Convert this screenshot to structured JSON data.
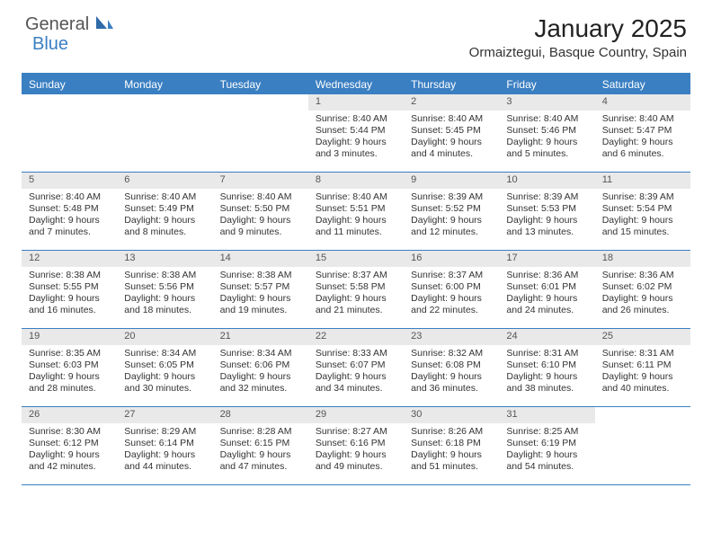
{
  "logo": {
    "general": "General",
    "blue": "Blue",
    "color_gray": "#555555",
    "color_blue": "#3a7fc2"
  },
  "header": {
    "title": "January 2025",
    "location": "Ormaiztegui, Basque Country, Spain"
  },
  "colors": {
    "accent": "#3a7fc2",
    "header_bg": "#3a7fc2",
    "daynum_bg": "#e9e9e9",
    "text": "#333333"
  },
  "day_names": [
    "Sunday",
    "Monday",
    "Tuesday",
    "Wednesday",
    "Thursday",
    "Friday",
    "Saturday"
  ],
  "weeks": [
    [
      null,
      null,
      null,
      {
        "n": "1",
        "sunrise": "Sunrise: 8:40 AM",
        "sunset": "Sunset: 5:44 PM",
        "daylight": "Daylight: 9 hours and 3 minutes."
      },
      {
        "n": "2",
        "sunrise": "Sunrise: 8:40 AM",
        "sunset": "Sunset: 5:45 PM",
        "daylight": "Daylight: 9 hours and 4 minutes."
      },
      {
        "n": "3",
        "sunrise": "Sunrise: 8:40 AM",
        "sunset": "Sunset: 5:46 PM",
        "daylight": "Daylight: 9 hours and 5 minutes."
      },
      {
        "n": "4",
        "sunrise": "Sunrise: 8:40 AM",
        "sunset": "Sunset: 5:47 PM",
        "daylight": "Daylight: 9 hours and 6 minutes."
      }
    ],
    [
      {
        "n": "5",
        "sunrise": "Sunrise: 8:40 AM",
        "sunset": "Sunset: 5:48 PM",
        "daylight": "Daylight: 9 hours and 7 minutes."
      },
      {
        "n": "6",
        "sunrise": "Sunrise: 8:40 AM",
        "sunset": "Sunset: 5:49 PM",
        "daylight": "Daylight: 9 hours and 8 minutes."
      },
      {
        "n": "7",
        "sunrise": "Sunrise: 8:40 AM",
        "sunset": "Sunset: 5:50 PM",
        "daylight": "Daylight: 9 hours and 9 minutes."
      },
      {
        "n": "8",
        "sunrise": "Sunrise: 8:40 AM",
        "sunset": "Sunset: 5:51 PM",
        "daylight": "Daylight: 9 hours and 11 minutes."
      },
      {
        "n": "9",
        "sunrise": "Sunrise: 8:39 AM",
        "sunset": "Sunset: 5:52 PM",
        "daylight": "Daylight: 9 hours and 12 minutes."
      },
      {
        "n": "10",
        "sunrise": "Sunrise: 8:39 AM",
        "sunset": "Sunset: 5:53 PM",
        "daylight": "Daylight: 9 hours and 13 minutes."
      },
      {
        "n": "11",
        "sunrise": "Sunrise: 8:39 AM",
        "sunset": "Sunset: 5:54 PM",
        "daylight": "Daylight: 9 hours and 15 minutes."
      }
    ],
    [
      {
        "n": "12",
        "sunrise": "Sunrise: 8:38 AM",
        "sunset": "Sunset: 5:55 PM",
        "daylight": "Daylight: 9 hours and 16 minutes."
      },
      {
        "n": "13",
        "sunrise": "Sunrise: 8:38 AM",
        "sunset": "Sunset: 5:56 PM",
        "daylight": "Daylight: 9 hours and 18 minutes."
      },
      {
        "n": "14",
        "sunrise": "Sunrise: 8:38 AM",
        "sunset": "Sunset: 5:57 PM",
        "daylight": "Daylight: 9 hours and 19 minutes."
      },
      {
        "n": "15",
        "sunrise": "Sunrise: 8:37 AM",
        "sunset": "Sunset: 5:58 PM",
        "daylight": "Daylight: 9 hours and 21 minutes."
      },
      {
        "n": "16",
        "sunrise": "Sunrise: 8:37 AM",
        "sunset": "Sunset: 6:00 PM",
        "daylight": "Daylight: 9 hours and 22 minutes."
      },
      {
        "n": "17",
        "sunrise": "Sunrise: 8:36 AM",
        "sunset": "Sunset: 6:01 PM",
        "daylight": "Daylight: 9 hours and 24 minutes."
      },
      {
        "n": "18",
        "sunrise": "Sunrise: 8:36 AM",
        "sunset": "Sunset: 6:02 PM",
        "daylight": "Daylight: 9 hours and 26 minutes."
      }
    ],
    [
      {
        "n": "19",
        "sunrise": "Sunrise: 8:35 AM",
        "sunset": "Sunset: 6:03 PM",
        "daylight": "Daylight: 9 hours and 28 minutes."
      },
      {
        "n": "20",
        "sunrise": "Sunrise: 8:34 AM",
        "sunset": "Sunset: 6:05 PM",
        "daylight": "Daylight: 9 hours and 30 minutes."
      },
      {
        "n": "21",
        "sunrise": "Sunrise: 8:34 AM",
        "sunset": "Sunset: 6:06 PM",
        "daylight": "Daylight: 9 hours and 32 minutes."
      },
      {
        "n": "22",
        "sunrise": "Sunrise: 8:33 AM",
        "sunset": "Sunset: 6:07 PM",
        "daylight": "Daylight: 9 hours and 34 minutes."
      },
      {
        "n": "23",
        "sunrise": "Sunrise: 8:32 AM",
        "sunset": "Sunset: 6:08 PM",
        "daylight": "Daylight: 9 hours and 36 minutes."
      },
      {
        "n": "24",
        "sunrise": "Sunrise: 8:31 AM",
        "sunset": "Sunset: 6:10 PM",
        "daylight": "Daylight: 9 hours and 38 minutes."
      },
      {
        "n": "25",
        "sunrise": "Sunrise: 8:31 AM",
        "sunset": "Sunset: 6:11 PM",
        "daylight": "Daylight: 9 hours and 40 minutes."
      }
    ],
    [
      {
        "n": "26",
        "sunrise": "Sunrise: 8:30 AM",
        "sunset": "Sunset: 6:12 PM",
        "daylight": "Daylight: 9 hours and 42 minutes."
      },
      {
        "n": "27",
        "sunrise": "Sunrise: 8:29 AM",
        "sunset": "Sunset: 6:14 PM",
        "daylight": "Daylight: 9 hours and 44 minutes."
      },
      {
        "n": "28",
        "sunrise": "Sunrise: 8:28 AM",
        "sunset": "Sunset: 6:15 PM",
        "daylight": "Daylight: 9 hours and 47 minutes."
      },
      {
        "n": "29",
        "sunrise": "Sunrise: 8:27 AM",
        "sunset": "Sunset: 6:16 PM",
        "daylight": "Daylight: 9 hours and 49 minutes."
      },
      {
        "n": "30",
        "sunrise": "Sunrise: 8:26 AM",
        "sunset": "Sunset: 6:18 PM",
        "daylight": "Daylight: 9 hours and 51 minutes."
      },
      {
        "n": "31",
        "sunrise": "Sunrise: 8:25 AM",
        "sunset": "Sunset: 6:19 PM",
        "daylight": "Daylight: 9 hours and 54 minutes."
      },
      null
    ]
  ]
}
